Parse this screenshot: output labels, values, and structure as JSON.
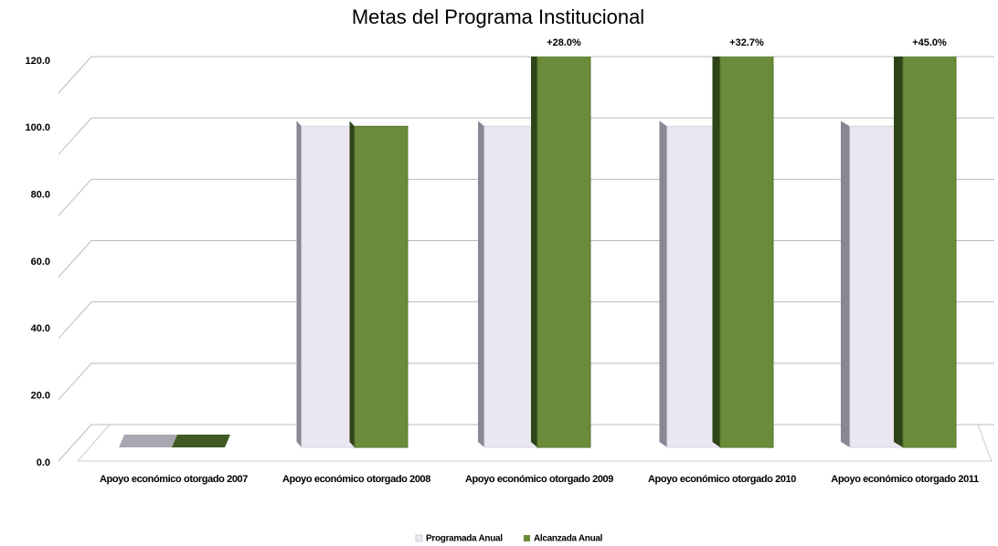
{
  "chart_data": {
    "type": "bar3d",
    "title": "Metas del Programa Institucional",
    "categories": [
      "Apoyo económico otorgado 2007",
      "Apoyo económico otorgado 2008",
      "Apoyo económico otorgado 2009",
      "Apoyo económico otorgado 2010",
      "Apoyo económico otorgado 2011"
    ],
    "series": [
      {
        "name": "Programada Anual",
        "color": "#ebe7f1",
        "values": [
          0,
          100,
          100,
          100,
          100
        ]
      },
      {
        "name": "Alcanzada Anual",
        "color": "#6a8c3a",
        "values": [
          0,
          100,
          128,
          132.7,
          145
        ]
      }
    ],
    "annotations": [
      null,
      null,
      "+28.0%",
      "+32.7%",
      "+45.0%"
    ],
    "ylim": [
      0,
      120
    ],
    "yticks": [
      {
        "value": 0,
        "label": "0.0"
      },
      {
        "value": 20,
        "label": "20.0"
      },
      {
        "value": 40,
        "label": "40.0"
      },
      {
        "value": 60,
        "label": "60.0"
      },
      {
        "value": 80,
        "label": "80.0"
      },
      {
        "value": 100,
        "label": "100.0"
      },
      {
        "value": 120,
        "label": "120.0"
      }
    ],
    "grid": true,
    "legend": "bottom"
  }
}
